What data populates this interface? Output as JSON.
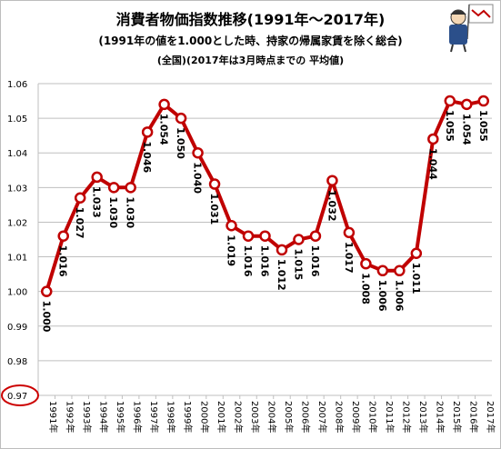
{
  "titles": {
    "main": "消費者物価指数推移(1991年～2017年)",
    "sub1": "(1991年の値を1.000とした時、持家の帰属家賃を除く総合)",
    "sub2": "(全国)(2017年は3月時点までの 平均値)"
  },
  "colors": {
    "line": "#c00000",
    "grid": "#bfbfbf",
    "highlight": "#cc0000"
  },
  "chart_data": {
    "type": "line",
    "x": [
      "1991年",
      "1992年",
      "1993年",
      "1994年",
      "1995年",
      "1996年",
      "1997年",
      "1998年",
      "1999年",
      "2000年",
      "2001年",
      "2002年",
      "2003年",
      "2004年",
      "2005年",
      "2006年",
      "2007年",
      "2008年",
      "2009年",
      "2010年",
      "2011年",
      "2012年",
      "2013年",
      "2014年",
      "2015年",
      "2016年",
      "2017年"
    ],
    "series": [
      {
        "values": [
          1.0,
          1.016,
          1.027,
          1.033,
          1.03,
          1.03,
          1.046,
          1.054,
          1.05,
          1.04,
          1.031,
          1.019,
          1.016,
          1.016,
          1.012,
          1.015,
          1.016,
          1.032,
          1.017,
          1.008,
          1.006,
          1.006,
          1.011,
          1.044,
          1.055,
          1.054,
          1.055
        ]
      }
    ],
    "data_labels": [
      "1.000",
      "1.016",
      "1.027",
      "1.033",
      "1.030",
      "1.030",
      "1.046",
      "1.054",
      "1.050",
      "1.040",
      "1.031",
      "1.019",
      "1.016",
      "1.016",
      "1.012",
      "1.015",
      "1.016",
      "1.032",
      "1.017",
      "1.008",
      "1.006",
      "1.006",
      "1.011",
      "1.044",
      "1.055",
      "1.054",
      "1.055"
    ],
    "yticks": [
      "0.97",
      "0.98",
      "0.99",
      "1.00",
      "1.01",
      "1.02",
      "1.03",
      "1.04",
      "1.05",
      "1.06"
    ],
    "ylim": [
      0.97,
      1.06
    ],
    "grid": true,
    "highlighted_tick": "0.97",
    "xlabel": "",
    "ylabel": ""
  }
}
